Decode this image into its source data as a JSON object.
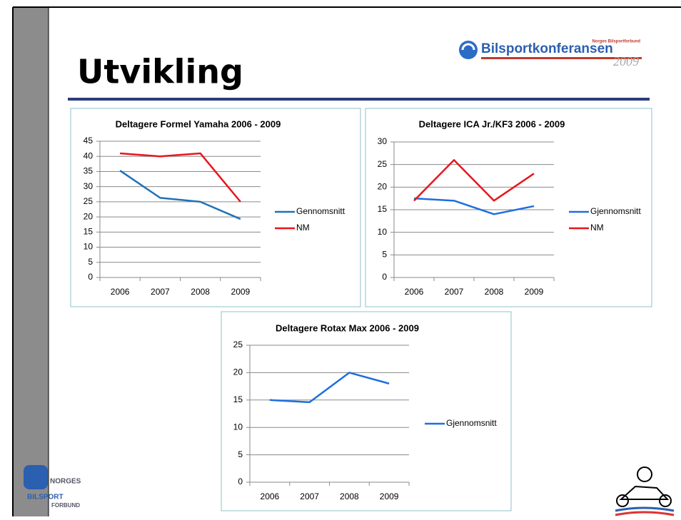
{
  "title": "Utvikling",
  "logo_top": {
    "name": "Bilsportkonferansen",
    "year": "2009",
    "org": "Norges Bilsportforbund"
  },
  "logo_bottom": {
    "line1": "NORGES",
    "line2": "BILSPORT",
    "line3": "FORBUND"
  },
  "chart_data": [
    {
      "type": "line",
      "title": "Deltagere Formel Yamaha 2006 - 2009",
      "categories": [
        "2006",
        "2007",
        "2008",
        "2009"
      ],
      "series": [
        {
          "name": "Gennomsnitt",
          "color": "#1f72b8",
          "values": [
            35.3,
            26.3,
            25,
            19.3
          ]
        },
        {
          "name": "NM",
          "color": "#e8161c",
          "values": [
            41,
            40,
            41,
            25
          ]
        }
      ],
      "ylim": [
        0,
        45
      ],
      "yticks": [
        0,
        5,
        10,
        15,
        20,
        25,
        30,
        35,
        40,
        45
      ],
      "grid": true,
      "legend": "right"
    },
    {
      "type": "line",
      "title": "Deltagere ICA Jr./KF3 2006 - 2009",
      "categories": [
        "2006",
        "2007",
        "2008",
        "2009"
      ],
      "series": [
        {
          "name": "Gjennomsnitt",
          "color": "#1c6fe0",
          "values": [
            17.5,
            17,
            14,
            15.8
          ]
        },
        {
          "name": "NM",
          "color": "#e8161c",
          "values": [
            17,
            26,
            17,
            23
          ]
        }
      ],
      "ylim": [
        0,
        30
      ],
      "yticks": [
        0,
        5,
        10,
        15,
        20,
        25,
        30
      ],
      "grid": true,
      "legend": "right"
    },
    {
      "type": "line",
      "title": "Deltagere Rotax Max 2006 - 2009",
      "categories": [
        "2006",
        "2007",
        "2008",
        "2009"
      ],
      "series": [
        {
          "name": "Gjennomsnitt",
          "color": "#1c6fe0",
          "values": [
            15,
            14.6,
            20,
            18
          ]
        }
      ],
      "ylim": [
        0,
        25
      ],
      "yticks": [
        0,
        5,
        10,
        15,
        20,
        25
      ],
      "grid": true,
      "legend": "right"
    }
  ]
}
